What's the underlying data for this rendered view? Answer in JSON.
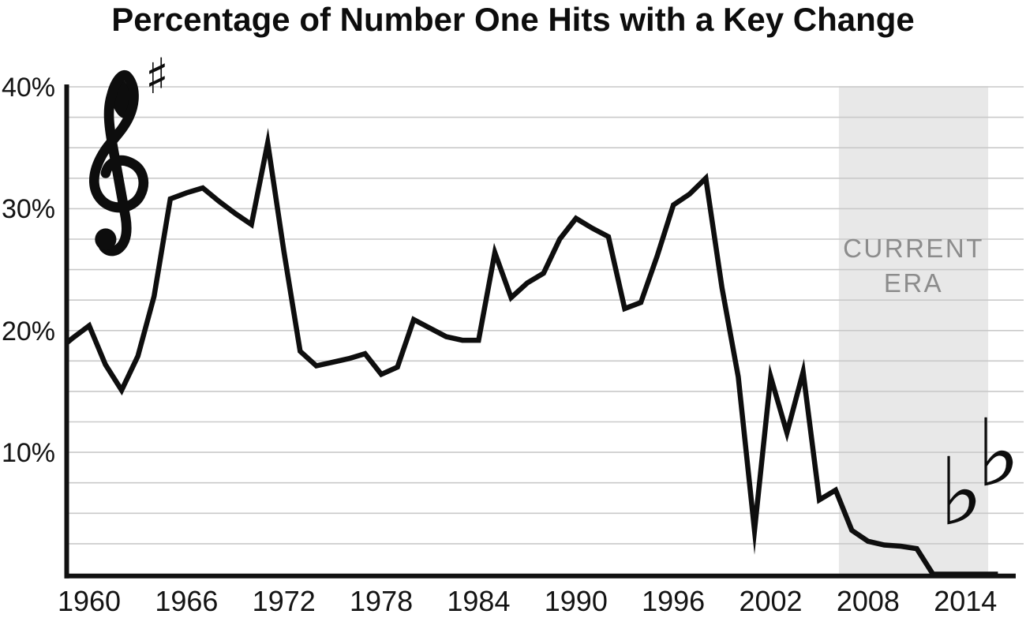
{
  "page": {
    "background": "#ffffff"
  },
  "chart_data": {
    "type": "line",
    "title": "Percentage of Number One Hits with a Key Change",
    "series_name": "Percent of number one hits featuring a key change",
    "x": [
      1958,
      1959,
      1960,
      1961,
      1962,
      1963,
      1964,
      1965,
      1966,
      1967,
      1968,
      1969,
      1970,
      1971,
      1972,
      1973,
      1974,
      1975,
      1976,
      1977,
      1978,
      1979,
      1980,
      1981,
      1982,
      1983,
      1984,
      1985,
      1986,
      1987,
      1988,
      1989,
      1990,
      1991,
      1992,
      1993,
      1994,
      1995,
      1996,
      1997,
      1998,
      1999,
      2000,
      2001,
      2002,
      2003,
      2004,
      2005,
      2006,
      2007,
      2008,
      2009,
      2010,
      2011,
      2012,
      2013,
      2014,
      2015,
      2016
    ],
    "values": [
      18.3,
      19.4,
      20.4,
      17.2,
      15.1,
      17.9,
      22.8,
      30.8,
      31.3,
      31.7,
      30.6,
      29.6,
      28.7,
      35.4,
      26.5,
      18.3,
      17.1,
      17.4,
      17.7,
      18.1,
      16.4,
      17.0,
      20.9,
      20.2,
      19.5,
      19.2,
      19.2,
      26.4,
      22.7,
      23.9,
      24.7,
      27.5,
      29.2,
      28.4,
      27.7,
      21.8,
      22.3,
      26.1,
      30.3,
      31.2,
      32.5,
      23.5,
      16.2,
      3.6,
      16.2,
      11.6,
      16.6,
      6.1,
      6.9,
      3.6,
      2.7,
      2.4,
      2.3,
      2.1,
      0,
      0,
      0,
      0,
      0
    ],
    "ylim": [
      0,
      40
    ],
    "xlim": [
      1958.6,
      2017
    ],
    "grid": true,
    "gridline_step": 2.5,
    "legend_position": "none",
    "y_ticks": [
      {
        "value": 40,
        "label": "40%"
      },
      {
        "value": 30,
        "label": "30%"
      },
      {
        "value": 20,
        "label": "20%"
      },
      {
        "value": 10,
        "label": "10%"
      }
    ],
    "x_ticks": [
      {
        "value": 1960,
        "label": "1960"
      },
      {
        "value": 1966,
        "label": "1966"
      },
      {
        "value": 1972,
        "label": "1972"
      },
      {
        "value": 1978,
        "label": "1978"
      },
      {
        "value": 1984,
        "label": "1984"
      },
      {
        "value": 1990,
        "label": "1990"
      },
      {
        "value": 1996,
        "label": "1996"
      },
      {
        "value": 2002,
        "label": "2002"
      },
      {
        "value": 2008,
        "label": "2008"
      },
      {
        "value": 2014,
        "label": "2014"
      }
    ],
    "band": {
      "label": "CURRENT\nERA",
      "from_x": 2006.2,
      "to_x": 2015.4,
      "color": "#e8e8e8",
      "label_color": "#8c8c8c"
    },
    "colors": {
      "line": "#0e0e0e",
      "gridline": "#c9c9c9",
      "axis": "#111111",
      "tick_text": "#141414"
    }
  },
  "ornaments": {
    "sharp": "♯",
    "flat": "♭"
  }
}
